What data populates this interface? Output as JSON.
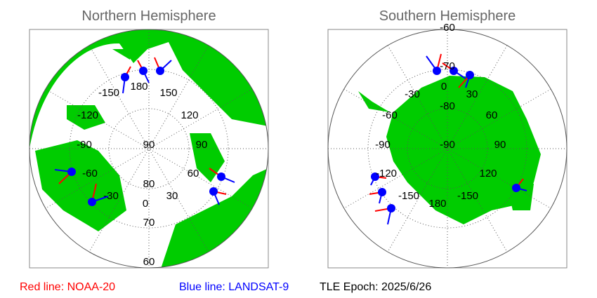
{
  "panels": [
    {
      "title": "Northern Hemisphere",
      "labels": [
        "-150",
        "180",
        "150",
        "120",
        "-120",
        "90",
        "-90",
        "90",
        "-60",
        "60",
        "80",
        "-30",
        "30",
        "0",
        "70",
        "60"
      ]
    },
    {
      "title": "Southern Hemisphere",
      "labels": [
        "-60",
        "-70",
        "-30",
        "0",
        "30",
        "-80",
        "-60",
        "60",
        "-90",
        "-90",
        "90",
        "-120",
        "120",
        "-150",
        "180",
        "-150"
      ]
    }
  ],
  "legend": {
    "red": "Red line: NOAA-20",
    "blue": "Blue line: LANDSAT-9",
    "epoch": "TLE Epoch: 2025/6/26"
  }
}
